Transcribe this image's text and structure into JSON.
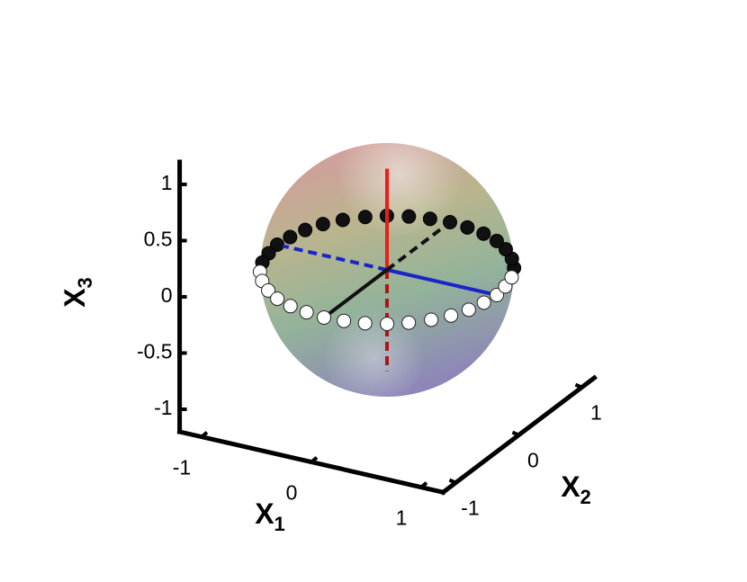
{
  "chart_data": {
    "type": "scatter3d",
    "x_label": {
      "main": "X",
      "sub": "1",
      "color": "#1010e0"
    },
    "y_label": {
      "main": "X",
      "sub": "2",
      "color": "#000000"
    },
    "z_label": {
      "main": "X",
      "sub": "3",
      "color": "#ee1111"
    },
    "xlim": [
      -1.2,
      1.2
    ],
    "ylim": [
      -1.2,
      1.2
    ],
    "zlim": [
      -1.2,
      1.2
    ],
    "xticks": [
      -1,
      0,
      1
    ],
    "yticks": [
      -1,
      0,
      1
    ],
    "zticks": [
      -1,
      -0.5,
      0,
      0.5,
      1
    ],
    "x": [
      1,
      0.98,
      0.94,
      0.87,
      0.77,
      0.64,
      0.5,
      0.34,
      0.17,
      0,
      -0.17,
      -0.34,
      -0.5,
      -0.64,
      -0.77,
      -0.87,
      -0.94,
      -0.98,
      -1,
      -0.98,
      -0.94,
      -0.87,
      -0.77,
      -0.64,
      -0.5,
      -0.34,
      -0.17,
      0,
      0.17,
      0.34,
      0.5,
      0.64,
      0.77,
      0.87,
      0.94,
      0.98
    ],
    "y": [
      0,
      0.17,
      0.34,
      0.5,
      0.64,
      0.77,
      0.87,
      0.94,
      0.98,
      1,
      0.98,
      0.94,
      0.87,
      0.77,
      0.64,
      0.5,
      0.34,
      0.17,
      0,
      -0.17,
      -0.34,
      -0.5,
      -0.64,
      -0.77,
      -0.87,
      -0.94,
      -0.98,
      -1,
      -0.98,
      -0.94,
      -0.87,
      -0.77,
      -0.64,
      -0.5,
      -0.34,
      -0.17
    ],
    "z": [
      0,
      0,
      0,
      0,
      0,
      0,
      0,
      0,
      0,
      0,
      0,
      0,
      0,
      0,
      0,
      0,
      0,
      0,
      0,
      0,
      0,
      0,
      0,
      0,
      0,
      0,
      0,
      0,
      0,
      0,
      0,
      0,
      0,
      0,
      0,
      0
    ]
  }
}
